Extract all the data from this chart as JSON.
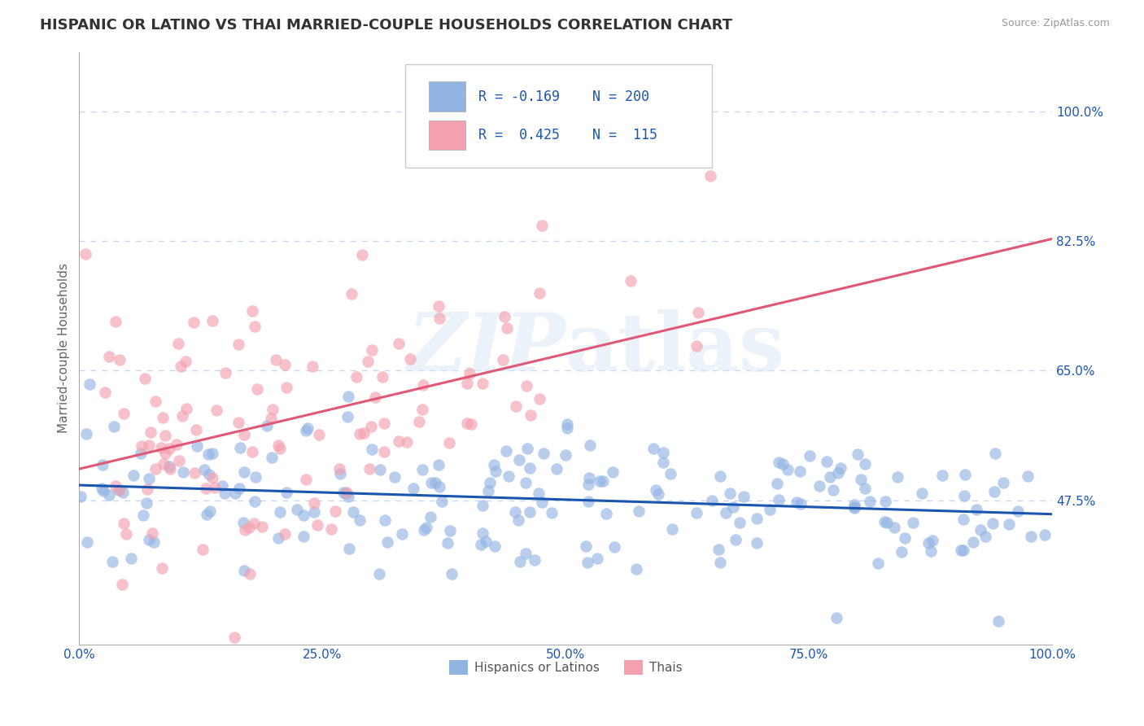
{
  "title": "HISPANIC OR LATINO VS THAI MARRIED-COUPLE HOUSEHOLDS CORRELATION CHART",
  "source_text": "Source: ZipAtlas.com",
  "ylabel": "Married-couple Households",
  "xlim": [
    0.0,
    1.0
  ],
  "ylim": [
    0.28,
    1.08
  ],
  "yticks": [
    0.475,
    0.65,
    0.825,
    1.0
  ],
  "ytick_labels": [
    "47.5%",
    "65.0%",
    "82.5%",
    "100.0%"
  ],
  "xticks": [
    0.0,
    0.25,
    0.5,
    0.75,
    1.0
  ],
  "xtick_labels": [
    "0.0%",
    "25.0%",
    "50.0%",
    "75.0%",
    "100.0%"
  ],
  "r_blue": -0.169,
  "n_blue": 200,
  "r_pink": 0.425,
  "n_pink": 115,
  "blue_color": "#92b4e3",
  "pink_color": "#f4a0b0",
  "blue_line_color": "#1a56b0",
  "pink_line_color": "#e05878",
  "legend_label_blue": "Hispanics or Latinos",
  "legend_label_pink": "Thais",
  "title_fontsize": 13,
  "axis_label_fontsize": 11,
  "tick_fontsize": 11,
  "background_color": "#ffffff",
  "grid_color": "#c8d8f0",
  "title_color": "#333333",
  "blue_intercept": 0.495,
  "blue_slope_line": -0.025,
  "pink_intercept": 0.5,
  "pink_slope_line": 0.37
}
